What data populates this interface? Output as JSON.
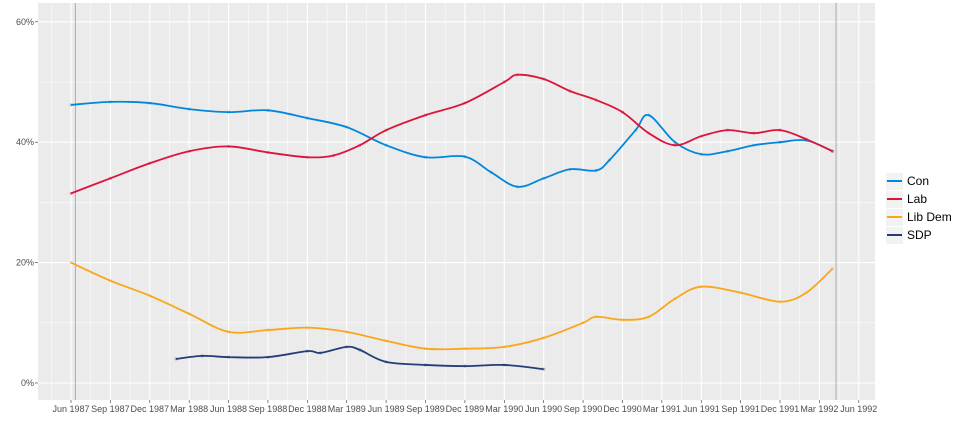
{
  "chart_data": {
    "type": "line",
    "title": "",
    "xlabel": "",
    "ylabel": "",
    "ylim": [
      0,
      60
    ],
    "xlim": [
      "1987-04",
      "1992-08"
    ],
    "y_ticks": [
      "0%",
      "20%",
      "40%",
      "60%"
    ],
    "y_tick_values": [
      0,
      20,
      40,
      60
    ],
    "x_ticks": [
      "Jun 1987",
      "Sep 1987",
      "Dec 1987",
      "Mar 1988",
      "Jun 1988",
      "Sep 1988",
      "Dec 1988",
      "Mar 1989",
      "Jun 1989",
      "Sep 1989",
      "Dec 1989",
      "Mar 1990",
      "Jun 1990",
      "Sep 1990",
      "Dec 1990",
      "Mar 1991",
      "Jun 1991",
      "Sep 1991",
      "Dec 1991",
      "Mar 1992",
      "Jun 1992"
    ],
    "x_tick_values": [
      "1987-06",
      "1987-09",
      "1987-12",
      "1988-03",
      "1988-06",
      "1988-09",
      "1988-12",
      "1989-03",
      "1989-06",
      "1989-09",
      "1989-12",
      "1990-03",
      "1990-06",
      "1990-09",
      "1990-12",
      "1991-03",
      "1991-06",
      "1991-09",
      "1991-12",
      "1992-03",
      "1992-06"
    ],
    "reference_lines": [
      "1987-06-11",
      "1992-04-09"
    ],
    "grid": true,
    "background": "#EBEBEB",
    "legend_placement": "right",
    "series": [
      {
        "name": "Con",
        "color": "#0087DC",
        "x": [
          "1987-06",
          "1987-09",
          "1987-12",
          "1988-03",
          "1988-06",
          "1988-09",
          "1988-12",
          "1989-03",
          "1989-06",
          "1989-09",
          "1989-12",
          "1990-02",
          "1990-04",
          "1990-06",
          "1990-08",
          "1990-10",
          "1990-11",
          "1991-01",
          "1991-02",
          "1991-04",
          "1991-06",
          "1991-08",
          "1991-10",
          "1991-12",
          "1992-02",
          "1992-04"
        ],
        "y": [
          46.2,
          46.7,
          46.5,
          45.5,
          45,
          45.3,
          44,
          42.5,
          39.5,
          37.5,
          37.6,
          35,
          32.6,
          34,
          35.5,
          35.3,
          37,
          42,
          44.5,
          40,
          38,
          38.5,
          39.5,
          40,
          40.3,
          38.5
        ]
      },
      {
        "name": "Lab",
        "color": "#DC143C",
        "x": [
          "1987-06",
          "1987-09",
          "1987-12",
          "1988-03",
          "1988-06",
          "1988-09",
          "1988-12",
          "1989-02",
          "1989-04",
          "1989-06",
          "1989-09",
          "1989-12",
          "1990-03",
          "1990-04",
          "1990-06",
          "1990-08",
          "1990-10",
          "1990-12",
          "1991-02",
          "1991-04",
          "1991-06",
          "1991-08",
          "1991-10",
          "1991-12",
          "1992-02",
          "1992-04"
        ],
        "y": [
          31.5,
          34,
          36.5,
          38.5,
          39.3,
          38.3,
          37.5,
          37.8,
          39.5,
          42,
          44.5,
          46.5,
          50,
          51.2,
          50.5,
          48.5,
          47,
          45,
          41.5,
          39.5,
          41,
          42,
          41.5,
          42,
          40.5,
          38.5
        ]
      },
      {
        "name": "Lib Dem",
        "color": "#FAA61A",
        "x": [
          "1987-06",
          "1987-09",
          "1987-12",
          "1988-03",
          "1988-06",
          "1988-09",
          "1988-12",
          "1989-03",
          "1989-06",
          "1989-09",
          "1989-12",
          "1990-03",
          "1990-06",
          "1990-09",
          "1990-10",
          "1990-12",
          "1991-02",
          "1991-04",
          "1991-06",
          "1991-09",
          "1991-12",
          "1992-02",
          "1992-04"
        ],
        "y": [
          20,
          17,
          14.5,
          11.5,
          8.5,
          8.8,
          9.2,
          8.5,
          7,
          5.7,
          5.7,
          6,
          7.5,
          10,
          11,
          10.5,
          11,
          14,
          16,
          15,
          13.5,
          15,
          19
        ]
      },
      {
        "name": "SDP",
        "color": "#243C78",
        "x": [
          "1988-02",
          "1988-04",
          "1988-06",
          "1988-09",
          "1988-12",
          "1989-01",
          "1989-03",
          "1989-04",
          "1989-06",
          "1989-09",
          "1989-12",
          "1990-03",
          "1990-06"
        ],
        "y": [
          4,
          4.5,
          4.3,
          4.3,
          5.3,
          5,
          6,
          5.5,
          3.5,
          3,
          2.8,
          3,
          2.3
        ]
      }
    ]
  }
}
